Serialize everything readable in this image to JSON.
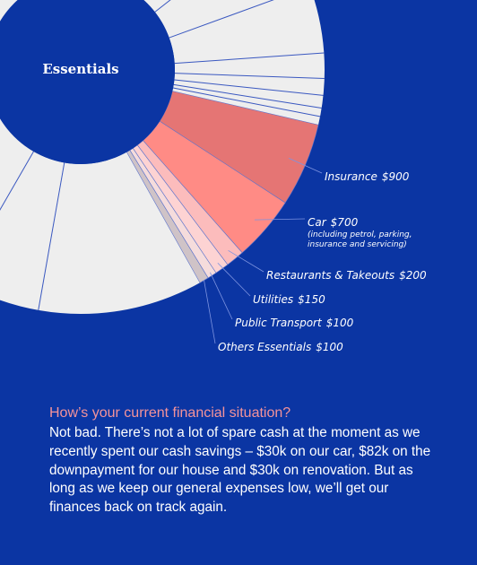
{
  "chart_data": {
    "type": "pie",
    "title": "Essentials",
    "categories": [
      "Insurance",
      "Car",
      "Restaurants & Takeouts",
      "Utilities",
      "Public Transport",
      "Others Essentials"
    ],
    "values": [
      900,
      700,
      200,
      150,
      100,
      100
    ],
    "value_labels": [
      "$900",
      "$700",
      "$200",
      "$150",
      "$100",
      "$100"
    ],
    "colors": [
      "#e57574",
      "#ff8b85",
      "#fcbcbc",
      "#fdd3d3",
      "#f5dcdc",
      "#cfc3c7"
    ],
    "annotations": [
      "(including petrol, parking, insurance and servicing)"
    ]
  },
  "text": {
    "heading": "How’s your current financial situation?",
    "body": "Not bad. There’s not a lot of spare cash at the moment as we recently spent our cash savings – $30k on our car, $82k on the downpayment for our house and $30k on renovation. But as long as we keep our general expenses low, we’ll get our finances back on track again."
  }
}
